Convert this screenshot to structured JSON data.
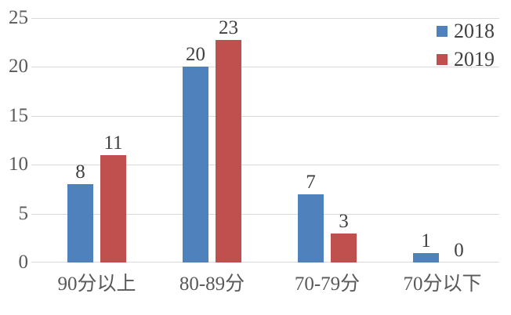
{
  "chart_data": {
    "type": "bar",
    "title": "",
    "xlabel": "",
    "ylabel": "",
    "categories": [
      "90分以上",
      "80-89分",
      "70-79分",
      "70分以下"
    ],
    "series": [
      {
        "name": "2018",
        "color": "#4F81BD",
        "values": [
          8,
          20,
          7,
          1
        ]
      },
      {
        "name": "2019",
        "color": "#C0504D",
        "values": [
          11,
          23,
          3,
          0
        ]
      }
    ],
    "y_ticks": [
      0,
      5,
      10,
      15,
      20,
      25
    ],
    "ylim": [
      0,
      25
    ],
    "grid": true,
    "legend_position": "top-right",
    "colors": {
      "gridline": "#d9d9d9",
      "axis_text": "#595959",
      "label_text": "#404040"
    }
  }
}
